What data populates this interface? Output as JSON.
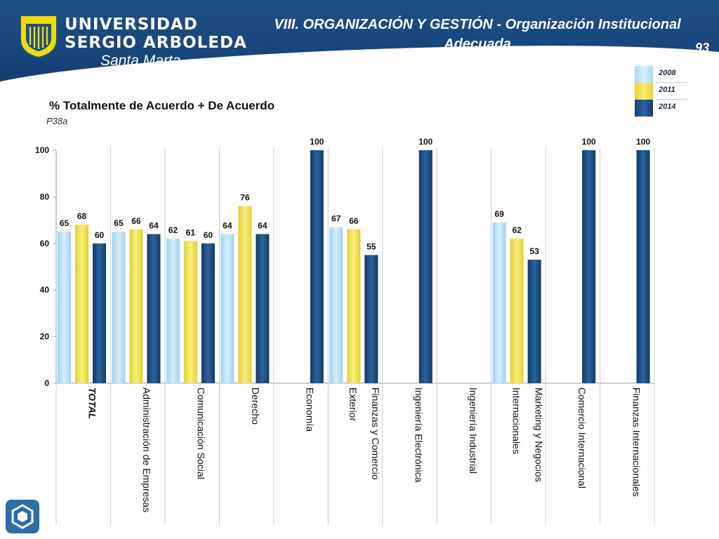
{
  "header": {
    "university_line1": "UNIVERSIDAD",
    "university_line2": "SERGIO ARBOLEDA",
    "city": "Santa Marta",
    "title_line1": "VIII. ORGANIZACIÓN Y GESTIÓN - Organización Institucional",
    "title_line2": "Adecuada",
    "page_number": "93"
  },
  "colors": {
    "header_bg": "#1d4f86",
    "series_2008": "#bde3f6",
    "series_2011": "#f3e24a",
    "series_2014": "#1b4f86"
  },
  "legend": [
    {
      "label": "2008",
      "color": "#bde3f6"
    },
    {
      "label": "2011",
      "color": "#f3e24a"
    },
    {
      "label": "2014",
      "color": "#1b4f86"
    }
  ],
  "chart_title": "% Totalmente de Acuerdo + De Acuerdo",
  "chart_subtitle": "P38a",
  "chart_data": {
    "type": "bar",
    "ylim": [
      0,
      100
    ],
    "yticks": [
      0,
      20,
      40,
      60,
      80,
      100
    ],
    "grid": false,
    "legend_position": "top-right",
    "categories": [
      "TOTAL",
      "Administración de Empresas",
      "Comunicación Social",
      "Derecho",
      "Economía",
      "Finanzas y Comercio Exterior",
      "Ingeniería Electrónica",
      "Ingeniería Industrial",
      "Marketing y Negocios Internacionales",
      "Comercio Internacional",
      "Finanzas Internacionales"
    ],
    "category_lines": [
      [
        "TOTAL"
      ],
      [
        "Administración de Empresas"
      ],
      [
        "Comunicación Social"
      ],
      [
        "Derecho"
      ],
      [
        "Economía"
      ],
      [
        "Finanzas y Comercio",
        "Exterior"
      ],
      [
        "Ingeniería Electrónica"
      ],
      [
        "Ingeniería Industrial"
      ],
      [
        "Marketing y Negocios",
        "Internacionales"
      ],
      [
        "Comercio Internacional"
      ],
      [
        "Finanzas Internacionales"
      ]
    ],
    "series": [
      {
        "name": "2008",
        "values": [
          65,
          65,
          62,
          64,
          null,
          67,
          null,
          null,
          69,
          null,
          null
        ]
      },
      {
        "name": "2011",
        "values": [
          68,
          66,
          61,
          76,
          null,
          66,
          null,
          null,
          62,
          null,
          null
        ]
      },
      {
        "name": "2014",
        "values": [
          60,
          64,
          60,
          64,
          100,
          55,
          100,
          null,
          53,
          100,
          100
        ]
      }
    ]
  }
}
